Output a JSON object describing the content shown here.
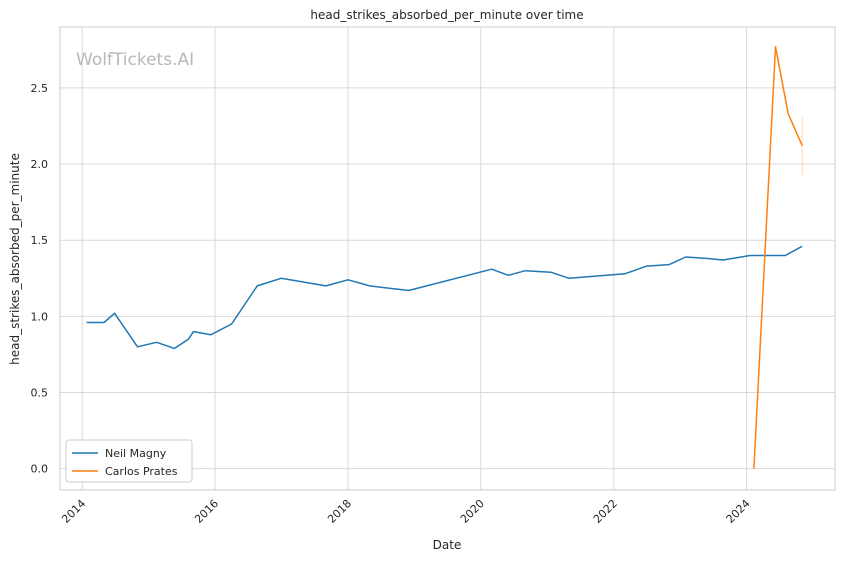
{
  "chart_data": {
    "type": "line",
    "title": "head_strikes_absorbed_per_minute over time",
    "xlabel": "Date",
    "ylabel": "head_strikes_absorbed_per_minute",
    "watermark": "WolfTickets.AI",
    "x_ticks": [
      "2014",
      "2016",
      "2018",
      "2020",
      "2022",
      "2024"
    ],
    "y_ticks": [
      "0.0",
      "0.5",
      "1.0",
      "1.5",
      "2.0",
      "2.5"
    ],
    "xlim": [
      "2013-09-01",
      "2025-05-01"
    ],
    "ylim": [
      -0.14,
      2.9
    ],
    "grid": true,
    "legend_position": "lower-left",
    "series": [
      {
        "name": "Neil Magny",
        "color": "#1f77b4",
        "points": [
          [
            "2014-01-25",
            0.96
          ],
          [
            "2014-05-01",
            0.96
          ],
          [
            "2014-06-28",
            1.02
          ],
          [
            "2014-11-01",
            0.8
          ],
          [
            "2015-02-14",
            0.83
          ],
          [
            "2015-05-23",
            0.79
          ],
          [
            "2015-08-08",
            0.85
          ],
          [
            "2015-09-05",
            0.9
          ],
          [
            "2015-12-10",
            0.88
          ],
          [
            "2016-04-01",
            0.95
          ],
          [
            "2016-08-20",
            1.2
          ],
          [
            "2016-12-30",
            1.25
          ],
          [
            "2017-09-02",
            1.2
          ],
          [
            "2018-01-01",
            1.24
          ],
          [
            "2018-05-01",
            1.2
          ],
          [
            "2018-11-30",
            1.17
          ],
          [
            "2020-03-01",
            1.31
          ],
          [
            "2020-06-01",
            1.27
          ],
          [
            "2020-09-01",
            1.3
          ],
          [
            "2021-01-20",
            1.29
          ],
          [
            "2021-05-01",
            1.25
          ],
          [
            "2022-03-05",
            1.28
          ],
          [
            "2022-07-01",
            1.33
          ],
          [
            "2022-11-01",
            1.34
          ],
          [
            "2023-02-01",
            1.39
          ],
          [
            "2023-06-01",
            1.38
          ],
          [
            "2023-08-26",
            1.37
          ],
          [
            "2024-01-20",
            1.4
          ],
          [
            "2024-08-01",
            1.4
          ],
          [
            "2024-11-01",
            1.46
          ]
        ]
      },
      {
        "name": "Carlos Prates",
        "color": "#ff7f0e",
        "points": [
          [
            "2024-02-10",
            0.0
          ],
          [
            "2024-06-08",
            2.77
          ],
          [
            "2024-08-17",
            2.33
          ],
          [
            "2024-11-02",
            2.12
          ]
        ],
        "error_band": {
          "x": "2024-11-02",
          "low": 1.93,
          "high": 2.31
        }
      }
    ]
  }
}
